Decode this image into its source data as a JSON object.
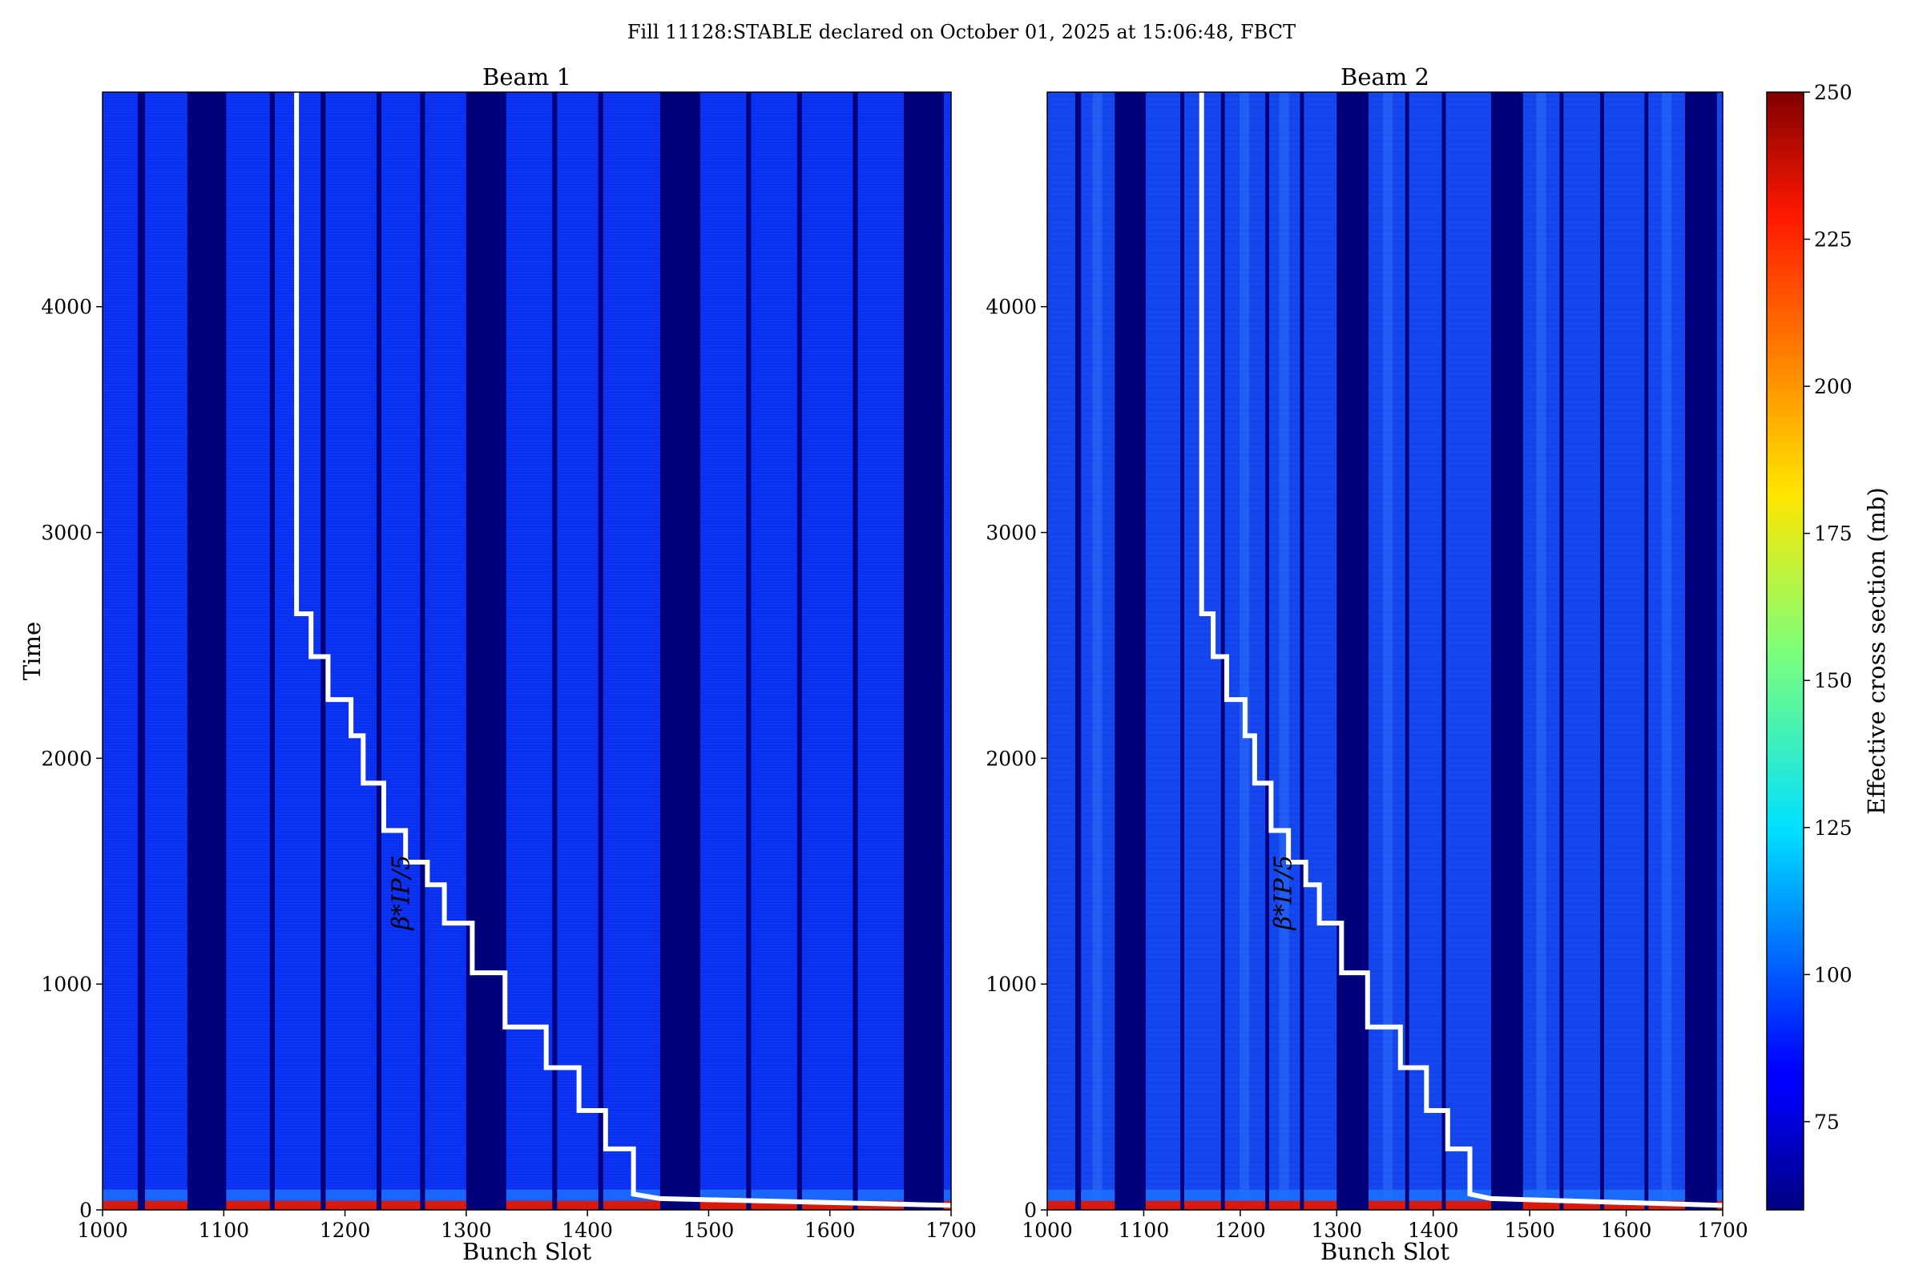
{
  "figure": {
    "suptitle": "Fill 11128:STABLE declared on October 01, 2025 at 15:06:48, FBCT"
  },
  "chart_data": [
    {
      "type": "heatmap",
      "title": "Beam 1",
      "xlabel": "Bunch Slot",
      "ylabel": "Time",
      "xlim": [
        1000,
        1700
      ],
      "ylim": [
        0,
        4950
      ],
      "xticks": [
        "1000",
        "1100",
        "1200",
        "1300",
        "1400",
        "1500",
        "1600",
        "1700"
      ],
      "yticks": [
        "0",
        "1000",
        "2000",
        "3000",
        "4000"
      ],
      "empty_slot_ranges": [
        [
          1029,
          1035
        ],
        [
          1070,
          1102
        ],
        [
          1138,
          1142
        ],
        [
          1180,
          1184
        ],
        [
          1226,
          1230
        ],
        [
          1262,
          1266
        ],
        [
          1300,
          1333
        ],
        [
          1371,
          1375
        ],
        [
          1409,
          1413
        ],
        [
          1460,
          1493
        ],
        [
          1531,
          1535
        ],
        [
          1573,
          1577
        ],
        [
          1619,
          1623
        ],
        [
          1661,
          1694
        ]
      ],
      "brightness": 0.0,
      "annotation": "β*IP/5",
      "overlay_line": {
        "color": "#ffffff",
        "x": [
          1160,
          1160,
          1172,
          1172,
          1186,
          1186,
          1205,
          1205,
          1215,
          1215,
          1232,
          1232,
          1250,
          1250,
          1268,
          1268,
          1282,
          1282,
          1305,
          1305,
          1332,
          1332,
          1366,
          1366,
          1393,
          1393,
          1415,
          1415,
          1438,
          1438,
          1460,
          1700
        ],
        "y": [
          4950,
          2640,
          2640,
          2450,
          2450,
          2260,
          2260,
          2100,
          2100,
          1890,
          1890,
          1680,
          1680,
          1540,
          1540,
          1440,
          1440,
          1270,
          1270,
          1050,
          1050,
          810,
          810,
          630,
          630,
          440,
          440,
          270,
          270,
          70,
          50,
          20
        ]
      }
    },
    {
      "type": "heatmap",
      "title": "Beam 2",
      "xlabel": "Bunch Slot",
      "ylabel": "",
      "xlim": [
        1000,
        1700
      ],
      "ylim": [
        0,
        4950
      ],
      "xticks": [
        "1000",
        "1100",
        "1200",
        "1300",
        "1400",
        "1500",
        "1600",
        "1700"
      ],
      "yticks": [
        "0",
        "1000",
        "2000",
        "3000",
        "4000"
      ],
      "empty_slot_ranges": [
        [
          1029,
          1035
        ],
        [
          1070,
          1102
        ],
        [
          1138,
          1142
        ],
        [
          1180,
          1184
        ],
        [
          1226,
          1230
        ],
        [
          1262,
          1266
        ],
        [
          1300,
          1333
        ],
        [
          1371,
          1375
        ],
        [
          1409,
          1413
        ],
        [
          1460,
          1493
        ],
        [
          1531,
          1535
        ],
        [
          1573,
          1577
        ],
        [
          1619,
          1623
        ],
        [
          1661,
          1694
        ]
      ],
      "brightness": 0.1,
      "annotation": "β*IP/5",
      "overlay_line": {
        "color": "#ffffff",
        "x": [
          1160,
          1160,
          1172,
          1172,
          1186,
          1186,
          1205,
          1205,
          1215,
          1215,
          1232,
          1232,
          1250,
          1250,
          1268,
          1268,
          1282,
          1282,
          1305,
          1305,
          1332,
          1332,
          1366,
          1366,
          1393,
          1393,
          1415,
          1415,
          1438,
          1438,
          1460,
          1700
        ],
        "y": [
          4950,
          2640,
          2640,
          2450,
          2450,
          2260,
          2260,
          2100,
          2100,
          1890,
          1890,
          1680,
          1680,
          1540,
          1540,
          1440,
          1440,
          1270,
          1270,
          1050,
          1050,
          810,
          810,
          630,
          630,
          440,
          440,
          270,
          270,
          70,
          50,
          20
        ]
      }
    }
  ],
  "colorbar": {
    "label": "Effective cross section (mb)",
    "range": [
      60,
      250
    ],
    "ticks": [
      "75",
      "100",
      "125",
      "150",
      "175",
      "200",
      "225",
      "250"
    ],
    "colormap": "jet"
  }
}
